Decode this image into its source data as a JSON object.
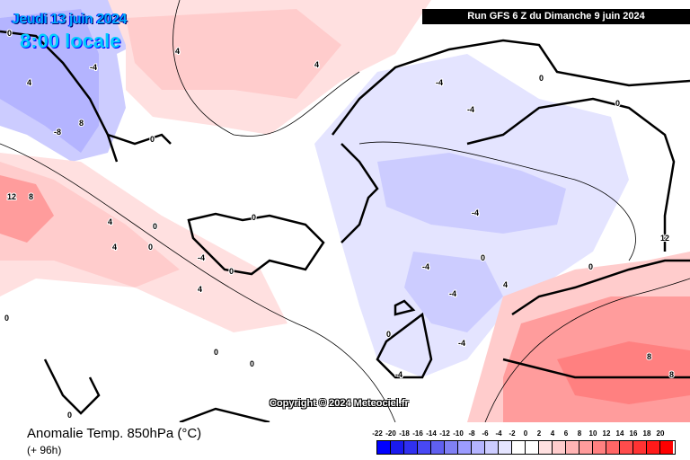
{
  "header": {
    "valid_date": "Jeudi 13 juin 2024",
    "valid_time": "8:00 locale",
    "run": "Run GFS 6 Z du Dimanche 9 juin 2024"
  },
  "copyright": "Copyright © 2024 Meteociel.fr",
  "footer": {
    "title": "Anomalie Temp. 850hPa (°C)",
    "lead": "(+ 96h)"
  },
  "legend": {
    "labels": [
      "-22",
      "-20",
      "-18",
      "-16",
      "-14",
      "-12",
      "-10",
      "-8",
      "-6",
      "-4",
      "-2",
      "0",
      "2",
      "4",
      "6",
      "8",
      "10",
      "12",
      "14",
      "16",
      "18",
      "20"
    ],
    "colors": [
      "#0000ff",
      "#1a1aee",
      "#3030f0",
      "#4848f4",
      "#6060f0",
      "#8080f4",
      "#9c9cff",
      "#b4b4ff",
      "#ccccff",
      "#e4e4ff",
      "#ffffff",
      "#ffffff",
      "#ffe0e0",
      "#ffcccc",
      "#ffb4b4",
      "#ff9c9c",
      "#ff8080",
      "#ff6666",
      "#ff4c4c",
      "#ff3333",
      "#ff1a1a",
      "#ff0000"
    ]
  },
  "map_colors": {
    "neutral": "#ffffff",
    "light_warm": "#ffe0e0",
    "warm": "#ffcccc",
    "warmer": "#ff9c9c",
    "light_cold": "#e4e4ff",
    "cold": "#ccccff",
    "colder": "#b4b4ff",
    "coastline": "#000000"
  },
  "contour_labels": [
    "0",
    "4",
    "-4",
    "8",
    "-8",
    "4",
    "0",
    "-4",
    "0",
    "4",
    "0",
    "-4",
    "-4",
    "0",
    "12",
    "8",
    "4",
    "4",
    "0",
    "0",
    "-4",
    "-4",
    "-4",
    "0",
    "0",
    "4",
    "8",
    "8",
    "12",
    "0",
    "0",
    "0",
    "-4",
    "4",
    "0",
    "0",
    "-4",
    "0"
  ]
}
